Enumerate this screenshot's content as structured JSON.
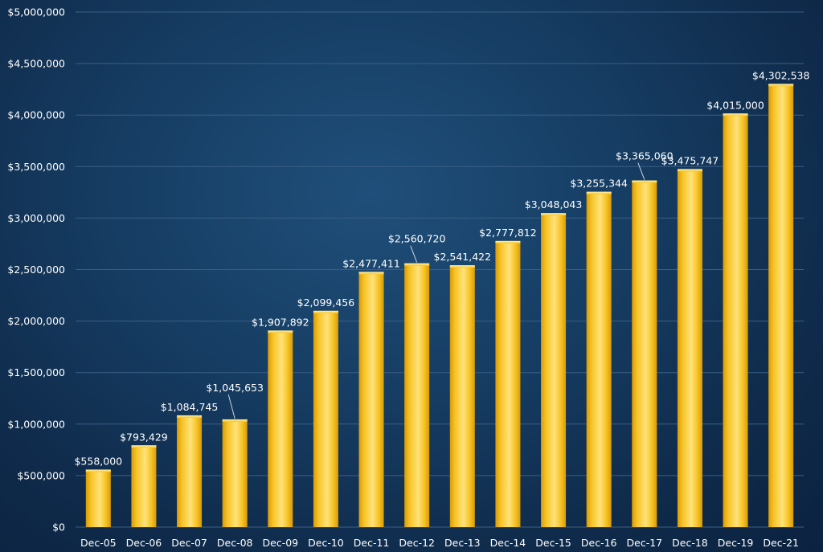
{
  "chart_data": {
    "type": "bar",
    "categories": [
      "Dec-05",
      "Dec-06",
      "Dec-07",
      "Dec-08",
      "Dec-09",
      "Dec-10",
      "Dec-11",
      "Dec-12",
      "Dec-13",
      "Dec-14",
      "Dec-15",
      "Dec-16",
      "Dec-17",
      "Dec-18",
      "Dec-19",
      "Dec-21"
    ],
    "values": [
      558000,
      793429,
      1084745,
      1045653,
      1907892,
      2099456,
      2477411,
      2560720,
      2541422,
      2777812,
      3048043,
      3255344,
      3365060,
      3475747,
      4015000,
      4302538
    ],
    "data_labels": [
      "$558,000",
      "$793,429",
      "$1,084,745",
      "$1,045,653",
      "$1,907,892",
      "$2,099,456",
      "$2,477,411",
      "$2,560,720",
      "$2,541,422",
      "$2,777,812",
      "$3,048,043",
      "$3,255,344",
      "$3,365,060",
      "$3,475,747",
      "$4,015,000",
      "$4,302,538"
    ],
    "ylim": [
      0,
      5000000
    ],
    "y_ticks": [
      0,
      500000,
      1000000,
      1500000,
      2000000,
      2500000,
      3000000,
      3500000,
      4000000,
      4500000,
      5000000
    ],
    "y_tick_labels": [
      "$0",
      "$500,000",
      "$1,000,000",
      "$1,500,000",
      "$2,000,000",
      "$2,500,000",
      "$3,000,000",
      "$3,500,000",
      "$4,000,000",
      "$4,500,000",
      "$5,000,000"
    ],
    "title": "",
    "xlabel": "",
    "ylabel": "",
    "grid": true,
    "legend": "none",
    "colors": {
      "bar_light": "#ffe27a",
      "bar_mid": "#f6c324",
      "bar_dark": "#d99a08",
      "grid": "#3a5f85",
      "text": "#ffffff"
    }
  }
}
